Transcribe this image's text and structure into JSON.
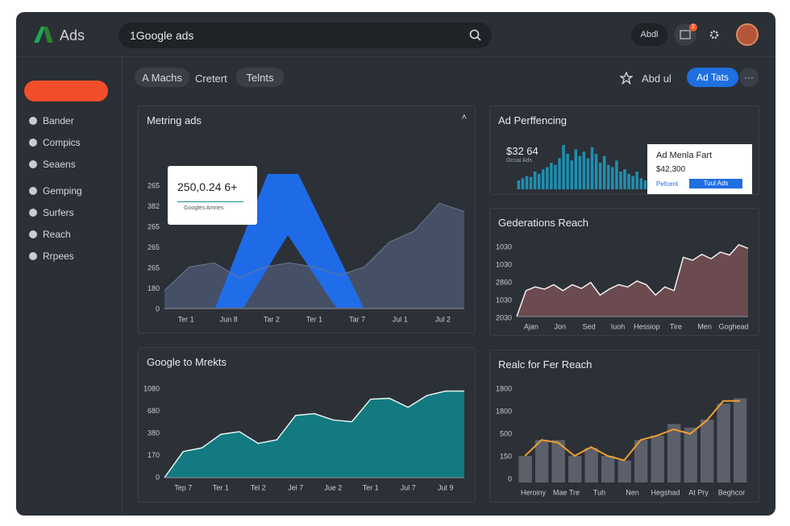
{
  "header": {
    "logo": "Ads",
    "search": "1Google ads",
    "user_button": "Abdl",
    "badge": "2"
  },
  "sidebar": {
    "items": [
      "Bander",
      "Compics",
      "Seaens",
      "Gemping",
      "Surfers",
      "Reach",
      "Rrpees"
    ]
  },
  "toolbar": {
    "tabs": [
      "A  Machs",
      "Cretert",
      "Telnts"
    ],
    "favorite": "Abd ul",
    "primary": "Ad Tats"
  },
  "panels": [
    {
      "title": "Metring ads",
      "type": "area",
      "color": "#4a5670",
      "ylim": [
        0,
        100
      ],
      "y_labels": [
        "265",
        "382",
        "265",
        "265",
        "265",
        "180",
        "0"
      ],
      "x_labels": [
        "Ter 1",
        "Jun 8",
        "Tar 2",
        "Ter 1",
        "Tar 7",
        "Jul 1",
        "Jul 2"
      ],
      "values": [
        13,
        30,
        33,
        22,
        30,
        33,
        30,
        24,
        30,
        48,
        56,
        76,
        70
      ],
      "tooltip": {
        "value": "250,0.24 6+",
        "label": "Googles Amries"
      }
    },
    {
      "title": "Ad Perffencing",
      "type": "bar",
      "color": "#1f8fb0",
      "ylim": [
        0,
        100
      ],
      "value": "$32 64",
      "subtitle": "Ocnai Ads",
      "values": [
        20,
        25,
        30,
        28,
        40,
        35,
        45,
        50,
        60,
        55,
        70,
        100,
        80,
        65,
        90,
        75,
        85,
        70,
        95,
        80,
        60,
        75,
        55,
        50,
        65,
        40,
        45,
        35,
        30,
        40,
        25,
        20
      ],
      "popup": {
        "title": "Ad Menla Fart",
        "value": "$42,300",
        "left": "Pefcent",
        "right": "Tuul Ads"
      }
    },
    {
      "title": "Gederations Reach",
      "type": "area",
      "color": "#6b4a50",
      "line_color": "#f0f0f0",
      "ylim": [
        0,
        100
      ],
      "y_labels": [
        "1030",
        "1030",
        "2860",
        "1030",
        "2030"
      ],
      "x_labels": [
        "Ajan",
        "Jon",
        "Sed",
        "Iuoh",
        "Hessiop",
        "Tire",
        "Men",
        "Goghead"
      ],
      "values": [
        0,
        35,
        40,
        37,
        43,
        35,
        43,
        38,
        46,
        29,
        37,
        43,
        40,
        48,
        43,
        29,
        40,
        35,
        80,
        76,
        84,
        78,
        87,
        83,
        97,
        92
      ]
    },
    {
      "title": "Google to Mrekts",
      "type": "area",
      "color": "#127a80",
      "line_color": "#e6f4f4",
      "ylim": [
        0,
        100
      ],
      "y_labels": [
        "1080",
        "680",
        "380",
        "170",
        "0"
      ],
      "x_labels": [
        "Tep 7",
        "Ter 1",
        "Tel 2",
        "Jel 7",
        "Jue 2",
        "Ter 1",
        "Jul 7",
        "Jut 9"
      ],
      "values": [
        0,
        29,
        33,
        48,
        51,
        38,
        42,
        69,
        71,
        64,
        62,
        87,
        88,
        78,
        91,
        96,
        96
      ]
    },
    {
      "title": "Realc for Fer Reach",
      "type": "barline",
      "color": "#5c606b",
      "line_color": "#f0a030",
      "ylim": [
        0,
        100
      ],
      "y_labels": [
        "1800",
        "1800",
        "500",
        "150",
        "0"
      ],
      "x_labels": [
        "Heroiny",
        "Mae Tre",
        "Tuh",
        "Nen",
        "Hegshad",
        "At Pry",
        "Beghcor"
      ],
      "values": [
        30,
        48,
        48,
        30,
        39,
        30,
        25,
        48,
        53,
        66,
        62,
        71,
        89,
        95
      ],
      "line": [
        30,
        48,
        45,
        30,
        40,
        30,
        25,
        48,
        53,
        60,
        55,
        70,
        92,
        92
      ]
    }
  ]
}
